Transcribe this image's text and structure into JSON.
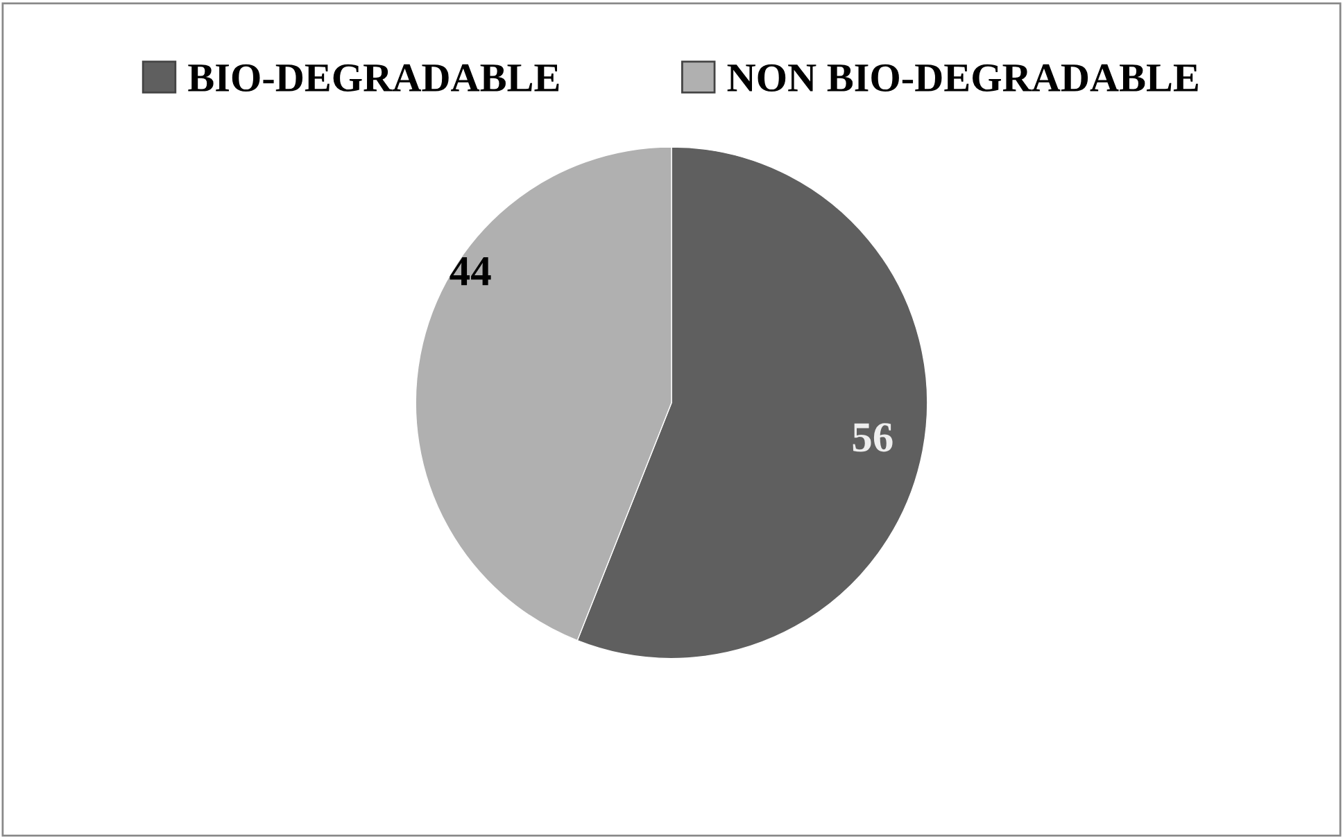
{
  "chart_data": {
    "type": "pie",
    "categories": [
      "BIO-DEGRADABLE",
      "NON BIO-DEGRADABLE"
    ],
    "values": [
      56,
      44
    ],
    "colors": [
      "#5f5f5f",
      "#b0b0b0"
    ],
    "data_labels": true,
    "legend": "top"
  }
}
